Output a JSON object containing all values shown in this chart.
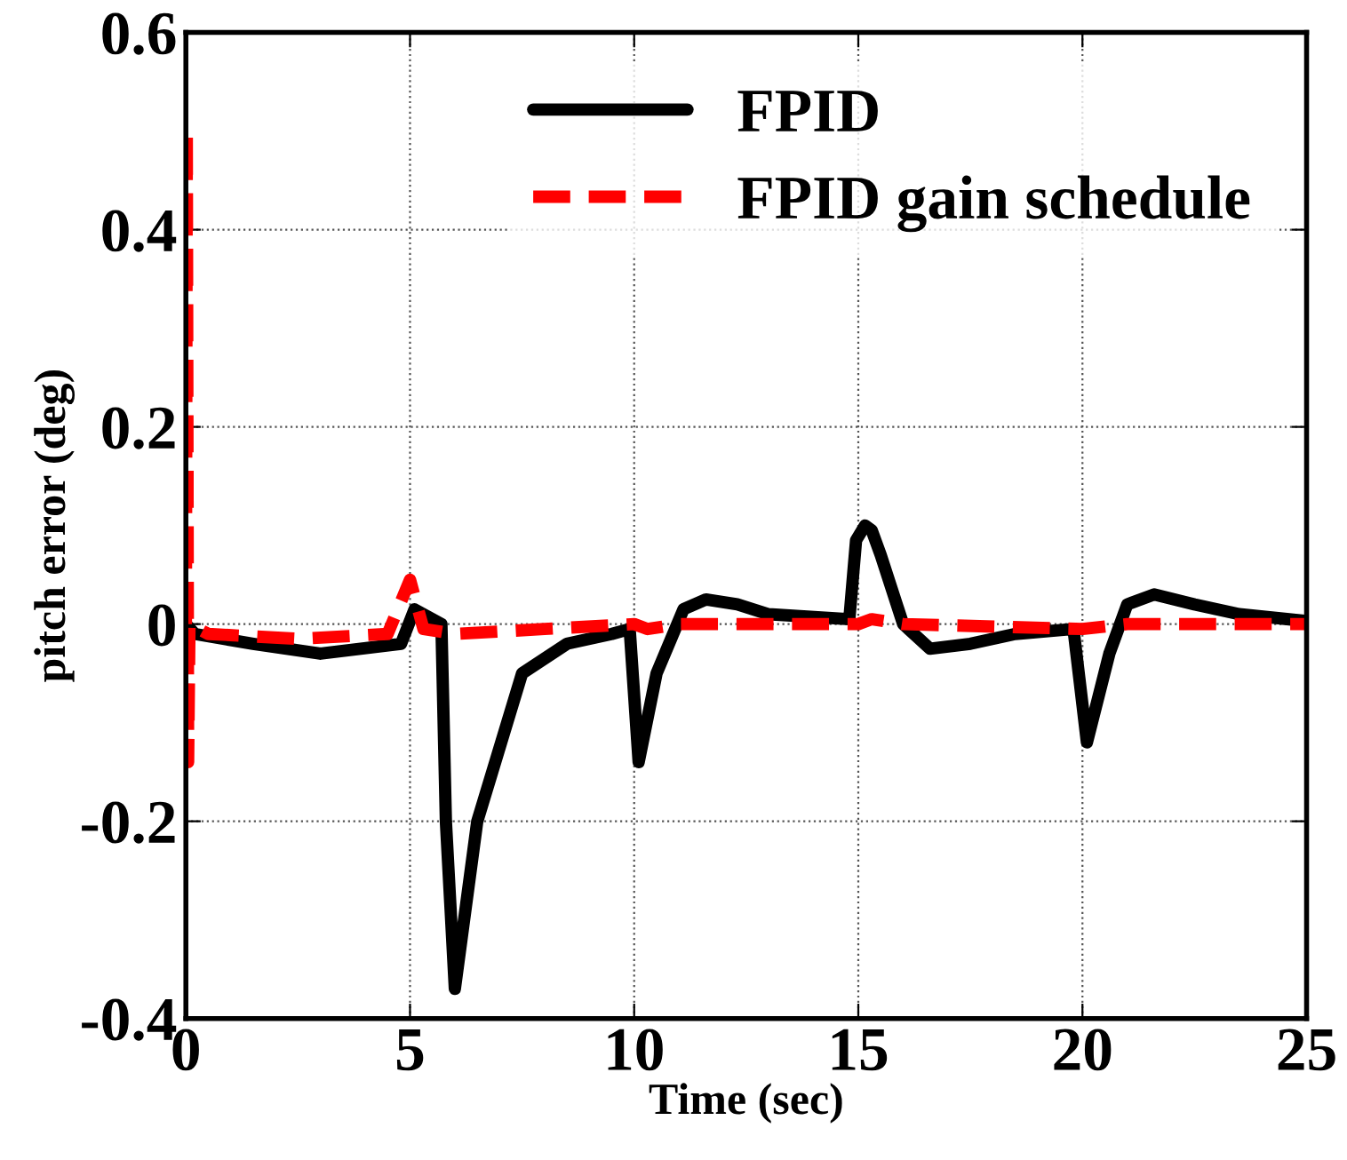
{
  "chart_data": {
    "type": "line",
    "xlabel": "Time (sec)",
    "ylabel": "pitch error (deg)",
    "xlim": [
      0,
      25
    ],
    "ylim": [
      -0.4,
      0.6
    ],
    "xticks": [
      0,
      5,
      10,
      15,
      20,
      25
    ],
    "yticks": [
      {
        "value": -0.4,
        "label": "-0.4"
      },
      {
        "value": -0.2,
        "label": "-0.2"
      },
      0,
      0.2,
      0.4,
      0.6
    ],
    "grid": true,
    "legend": "top right",
    "line_style": "solid",
    "marker": "none",
    "series": [
      {
        "name": "FPID",
        "color": "#000000",
        "x": [
          0,
          0.2,
          1.5,
          3,
          4.8,
          5.1,
          5.7,
          5.8,
          6.0,
          6.5,
          7.5,
          8.5,
          9.5,
          9.9,
          10.1,
          10.5,
          11.1,
          11.6,
          12.3,
          13,
          14.8,
          14.95,
          15.15,
          15.3,
          15.5,
          16,
          16.6,
          17.5,
          18.5,
          19.8,
          20.1,
          20.6,
          21.0,
          21.6,
          22.5,
          23.5,
          25
        ],
        "values": [
          0,
          -0.01,
          -0.02,
          -0.03,
          -0.02,
          0.015,
          0,
          -0.2,
          -0.37,
          -0.2,
          -0.05,
          -0.02,
          -0.01,
          -0.005,
          -0.14,
          -0.05,
          0.015,
          0.025,
          0.02,
          0.01,
          0.005,
          0.085,
          0.1,
          0.095,
          0.07,
          0,
          -0.025,
          -0.02,
          -0.01,
          -0.005,
          -0.12,
          -0.03,
          0.02,
          0.03,
          0.02,
          0.01,
          0.003
        ]
      },
      {
        "name": "FPID gain schedule",
        "color": "#ff0000",
        "line_style": "dashed",
        "x": [
          0,
          0.02,
          0.05,
          0.08,
          0.5,
          2.5,
          4.5,
          5.0,
          5.3,
          6,
          8,
          10,
          10.3,
          11,
          15,
          15.3,
          16,
          20,
          21,
          25
        ],
        "values": [
          0,
          0.5,
          -0.14,
          0,
          -0.01,
          -0.015,
          -0.01,
          0.045,
          -0.005,
          -0.01,
          -0.005,
          0,
          -0.005,
          0,
          0,
          0.005,
          0,
          -0.005,
          0,
          0
        ]
      }
    ]
  }
}
